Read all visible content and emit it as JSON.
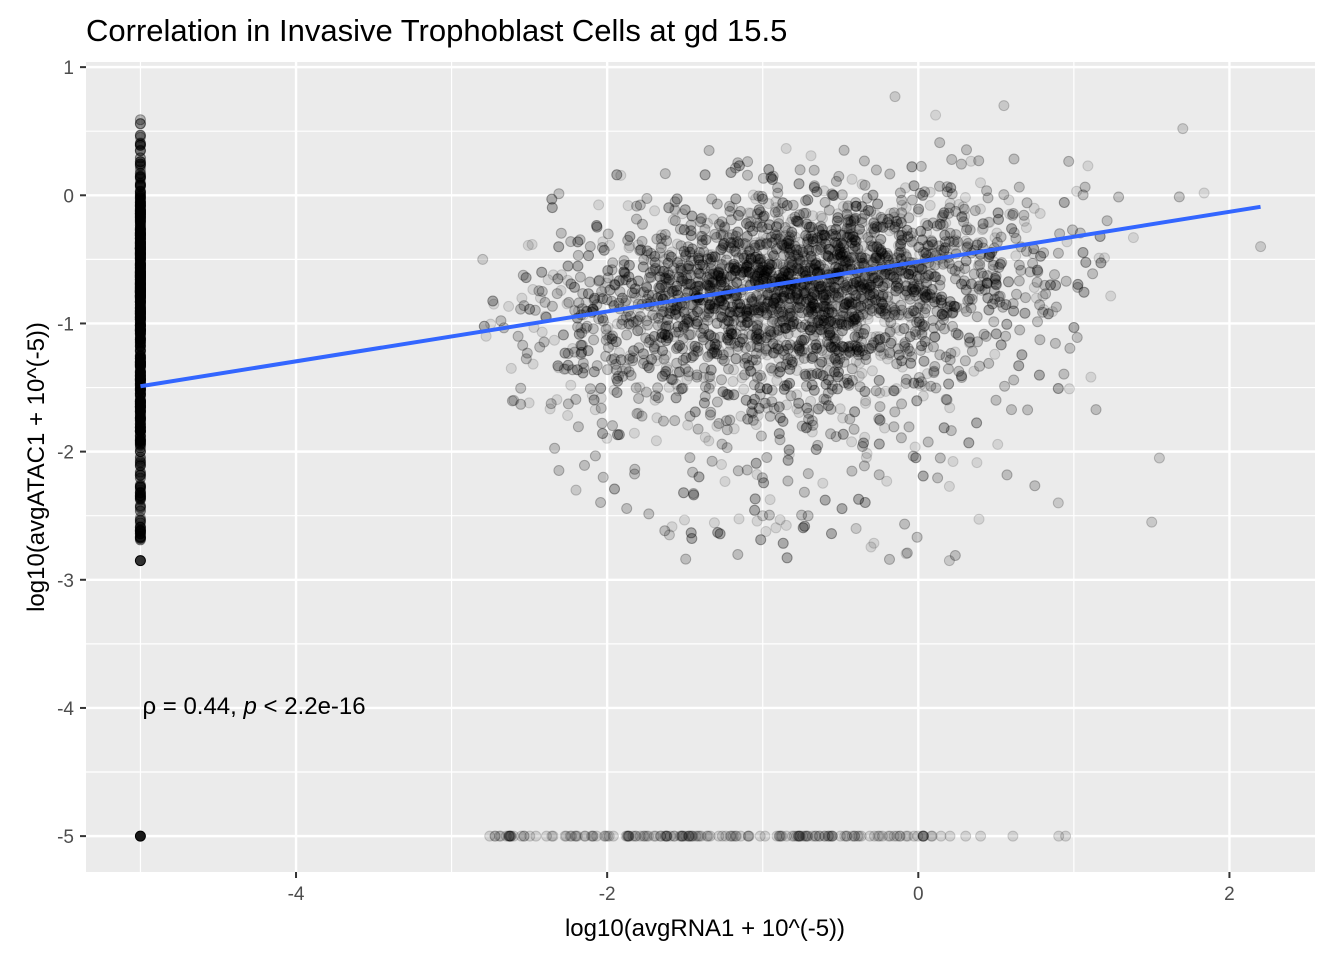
{
  "chart_data": {
    "type": "scatter",
    "title": "Correlation in Invasive Trophoblast Cells at gd 15.5",
    "xlabel": "log10(avgRNA1 + 10^(-5))",
    "ylabel": "log10(avgATAC1 + 10^(-5))",
    "xlim": [
      -5.35,
      2.55
    ],
    "ylim": [
      -5.28,
      1.04
    ],
    "x_ticks": [
      -4,
      -2,
      0,
      2
    ],
    "x_tick_labels": [
      "-4",
      "-2",
      "0",
      "2"
    ],
    "y_ticks": [
      1,
      0,
      -1,
      -2,
      -3,
      -4,
      -5
    ],
    "y_tick_labels": [
      "1",
      "0",
      "-1",
      "-2",
      "-3",
      "-4",
      "-5"
    ],
    "grid": true,
    "legend": "none",
    "point_color": "#000000",
    "point_opacity": 0.1,
    "fit_line": {
      "color": "#3366FF",
      "x": [
        -5,
        2.2
      ],
      "y": [
        -1.49,
        -0.09
      ]
    },
    "annotation": {
      "rho_label": "ρ = 0.44, ",
      "p_symbol": "p",
      "p_value": " < 2.2e-16",
      "x": -5,
      "y": -4
    },
    "series": [
      {
        "name": "",
        "description_points": [
          [
            -5,
            -5
          ],
          [
            -5,
            -2.85
          ],
          [
            -5,
            0.6
          ],
          [
            -5,
            -2.6
          ],
          [
            -5,
            -0.5
          ],
          [
            -2.8,
            -5
          ],
          [
            -2.5,
            -5
          ],
          [
            -2.2,
            -5
          ],
          [
            -1.8,
            -5
          ],
          [
            -1.4,
            -5
          ],
          [
            -1.0,
            -5
          ],
          [
            -0.6,
            -5
          ],
          [
            -0.2,
            -5
          ],
          [
            0.2,
            -5
          ],
          [
            0.6,
            -5
          ],
          [
            1.0,
            -5
          ],
          [
            1.35,
            -5
          ],
          [
            -2.8,
            -0.5
          ],
          [
            -2.6,
            -1.6
          ],
          [
            -2.2,
            -2.3
          ],
          [
            -1.6,
            -2.65
          ],
          [
            -1.0,
            -2.5
          ],
          [
            -0.4,
            -2.6
          ],
          [
            0.2,
            -2.85
          ],
          [
            0.9,
            -2.4
          ],
          [
            1.5,
            -2.55
          ],
          [
            1.55,
            -2.05
          ],
          [
            -0.15,
            0.77
          ],
          [
            0.55,
            0.7
          ],
          [
            1.7,
            0.52
          ],
          [
            2.2,
            -0.4
          ]
        ]
      }
    ]
  }
}
